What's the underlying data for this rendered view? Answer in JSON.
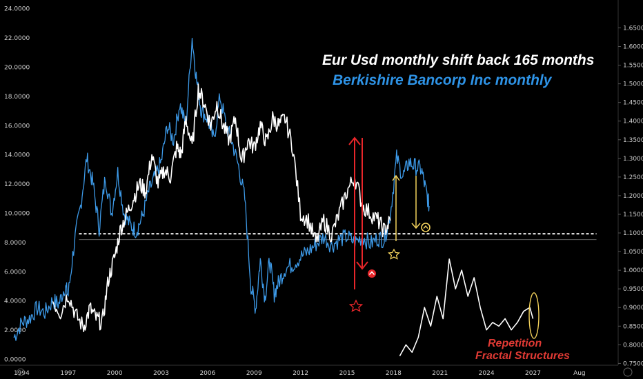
{
  "chart_data": {
    "type": "line",
    "title": "Eur Usd monthly shift back 165 months",
    "subtitle": "Berkishire Bancorp Inc  monthly",
    "annotation": [
      "Repetition",
      "Fractal Structures"
    ],
    "colors": {
      "title": "#ffffff",
      "subtitle": "#2e93e6",
      "annotation": "#e03a34",
      "series_blue": "#3d9ae8",
      "series_white": "#ffffff",
      "red_marker": "#e8262a",
      "yellow_marker": "#f3d25c"
    },
    "x_ticks": [
      "1994",
      "1997",
      "2000",
      "2003",
      "2006",
      "2009",
      "2012",
      "2015",
      "2018",
      "2021",
      "2024",
      "2027",
      "Aug"
    ],
    "x_tick_values": [
      1994,
      1997,
      2000,
      2003,
      2006,
      2009,
      2012,
      2015,
      2018,
      2021,
      2024,
      2027,
      2030
    ],
    "xlim": [
      1992.6,
      2032.5
    ],
    "left_axis": {
      "ticks": [
        "24.0000",
        "22.0000",
        "20.0000",
        "18.0000",
        "16.0000",
        "14.0000",
        "12.0000",
        "10.0000",
        "8.0000",
        "6.0000",
        "4.0000",
        "2.0000",
        "0.0000"
      ],
      "tick_values": [
        24,
        22,
        20,
        18,
        16,
        14,
        12,
        10,
        8,
        6,
        4,
        2,
        0
      ],
      "ylim": [
        -0.4,
        24.6
      ]
    },
    "right_axis": {
      "ticks": [
        "1.65000",
        "1.60000",
        "1.55000",
        "1.50000",
        "1.45000",
        "1.40000",
        "1.35000",
        "1.30000",
        "1.25000",
        "1.20000",
        "1.15000",
        "1.10000",
        "1.05000",
        "1.00000",
        "0.95000",
        "0.90000",
        "0.85000",
        "0.80000",
        "0.75000"
      ],
      "tick_values": [
        1.65,
        1.6,
        1.55,
        1.5,
        1.45,
        1.4,
        1.35,
        1.3,
        1.25,
        1.2,
        1.15,
        1.1,
        1.05,
        1.0,
        0.95,
        0.9,
        0.85,
        0.8,
        0.75
      ],
      "ylim": [
        0.7452,
        1.7248
      ]
    },
    "reference_lines": [
      {
        "style": "dashed",
        "color": "#ffffff",
        "axis": "left",
        "value": 8.6,
        "x_from": 1997.7,
        "x_to": 2031.1
      },
      {
        "style": "solid",
        "color": "#bbbbbb",
        "axis": "left",
        "value": 8.2,
        "x_from": 1997.7,
        "x_to": 2031.1
      }
    ],
    "series": [
      {
        "color": "#3d9ae8",
        "axis": "left",
        "x": [
          1993.5,
          1994.0,
          1994.5,
          1995.0,
          1995.5,
          1996.0,
          1996.4,
          1996.8,
          1997.0,
          1997.4,
          1997.8,
          1998.2,
          1998.6,
          1999.0,
          1999.4,
          1999.8,
          2000.2,
          2000.6,
          2001.0,
          2001.4,
          2001.8,
          2002.2,
          2002.6,
          2003.0,
          2003.4,
          2003.8,
          2004.2,
          2004.6,
          2005.0,
          2005.3,
          2005.6,
          2006.0,
          2006.4,
          2006.8,
          2007.2,
          2007.6,
          2008.0,
          2008.4,
          2008.8,
          2009.1,
          2009.4,
          2009.7,
          2010.0,
          2010.3,
          2010.6,
          2011.0,
          2011.5,
          2012.0,
          2012.5,
          2013.0,
          2013.5,
          2014.0,
          2014.5,
          2015.0,
          2015.5,
          2016.0,
          2016.5,
          2017.0,
          2017.4,
          2017.8,
          2018.2,
          2018.6,
          2019.0,
          2019.4,
          2019.8,
          2020.1,
          2020.3
        ],
        "values": [
          1.5,
          2.5,
          2.8,
          3.5,
          3.2,
          4.0,
          3.8,
          5.0,
          4.4,
          8.0,
          10.5,
          13.8,
          12.0,
          9.0,
          12.5,
          10.0,
          12.8,
          10.0,
          9.2,
          8.8,
          9.8,
          11.5,
          12.5,
          13.5,
          16.0,
          15.0,
          17.5,
          16.0,
          22.0,
          19.0,
          17.0,
          16.5,
          15.0,
          18.0,
          16.0,
          14.8,
          13.2,
          11.0,
          5.0,
          3.5,
          6.8,
          4.2,
          6.8,
          4.5,
          5.3,
          6.2,
          6.5,
          7.0,
          7.4,
          7.9,
          8.4,
          7.8,
          8.2,
          8.4,
          8.0,
          8.4,
          7.9,
          8.3,
          8.2,
          10.0,
          13.8,
          12.5,
          13.5,
          13.2,
          13.0,
          11.5,
          10.5
        ]
      },
      {
        "color": "#ffffff",
        "axis": "left",
        "x": [
          1996.0,
          1996.5,
          1997.0,
          1997.5,
          1998.0,
          1998.4,
          1998.8,
          1999.2,
          1999.6,
          2000.0,
          2000.4,
          2000.8,
          2001.2,
          2001.6,
          2002.0,
          2002.4,
          2002.8,
          2003.2,
          2003.6,
          2004.0,
          2004.3,
          2004.6,
          2005.0,
          2005.4,
          2005.8,
          2006.2,
          2006.6,
          2007.0,
          2007.4,
          2007.8,
          2008.2,
          2008.6,
          2009.0,
          2009.4,
          2009.8,
          2010.2,
          2010.6,
          2011.0,
          2011.5,
          2012.0,
          2012.5,
          2013.0,
          2013.5,
          2014.0,
          2014.5,
          2015.0,
          2015.5,
          2016.0,
          2016.5,
          2017.0,
          2017.4,
          2017.8
        ],
        "values": [
          4.0,
          3.2,
          4.5,
          3.0,
          2.2,
          3.5,
          2.8,
          2.5,
          5.5,
          7.0,
          9.0,
          10.0,
          11.0,
          12.0,
          11.5,
          14.0,
          12.0,
          13.0,
          12.5,
          14.5,
          14.0,
          16.5,
          14.5,
          18.5,
          17.5,
          16.0,
          17.5,
          16.0,
          15.0,
          16.5,
          13.5,
          15.0,
          14.5,
          16.0,
          14.8,
          16.5,
          16.0,
          16.5,
          14.5,
          10.0,
          9.5,
          8.0,
          9.5,
          8.5,
          10.0,
          11.5,
          12.5,
          10.5,
          10.0,
          9.5,
          8.8,
          9.5
        ]
      },
      {
        "color": "#ffffff",
        "axis": "right",
        "x": [
          2018.4,
          2018.8,
          2019.2,
          2019.6,
          2020.0,
          2020.4,
          2020.8,
          2021.2,
          2021.6,
          2022.0,
          2022.4,
          2022.8,
          2023.2,
          2023.6,
          2024.0,
          2024.4,
          2024.8,
          2025.2,
          2025.6,
          2026.0,
          2026.4,
          2026.8,
          2027.0
        ],
        "values": [
          0.77,
          0.8,
          0.78,
          0.82,
          0.9,
          0.85,
          0.93,
          0.87,
          1.03,
          0.95,
          1.0,
          0.93,
          0.98,
          0.9,
          0.84,
          0.86,
          0.85,
          0.87,
          0.84,
          0.86,
          0.89,
          0.9,
          0.87
        ]
      }
    ]
  }
}
